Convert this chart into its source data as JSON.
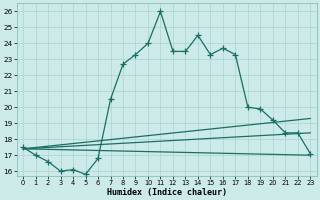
{
  "bg_color": "#cceae8",
  "grid_color": "#aad4d0",
  "line_color": "#1a6e65",
  "xlabel": "Humidex (Indice chaleur)",
  "x_values": [
    0,
    1,
    2,
    3,
    4,
    5,
    6,
    7,
    8,
    9,
    10,
    11,
    12,
    13,
    14,
    15,
    16,
    17,
    18,
    19,
    20,
    21,
    22,
    23
  ],
  "main_curve": [
    17.5,
    17.0,
    16.6,
    16.0,
    16.1,
    15.8,
    16.8,
    20.5,
    22.7,
    23.3,
    24.0,
    26.0,
    23.5,
    23.5,
    24.5,
    23.3,
    23.7,
    23.3,
    20.0,
    19.9,
    19.2,
    18.4,
    18.4,
    17.1
  ],
  "straight_line1": [
    [
      0,
      17.4
    ],
    [
      23,
      17.0
    ]
  ],
  "straight_line2": [
    [
      0,
      17.4
    ],
    [
      23,
      18.4
    ]
  ],
  "straight_line3": [
    [
      0,
      17.4
    ],
    [
      23,
      19.3
    ]
  ],
  "ylim": [
    15.7,
    26.5
  ],
  "xlim": [
    -0.5,
    23.5
  ],
  "yticks": [
    16,
    17,
    18,
    19,
    20,
    21,
    22,
    23,
    24,
    25,
    26
  ],
  "xticks": [
    0,
    1,
    2,
    3,
    4,
    5,
    6,
    7,
    8,
    9,
    10,
    11,
    12,
    13,
    14,
    15,
    16,
    17,
    18,
    19,
    20,
    21,
    22,
    23
  ]
}
